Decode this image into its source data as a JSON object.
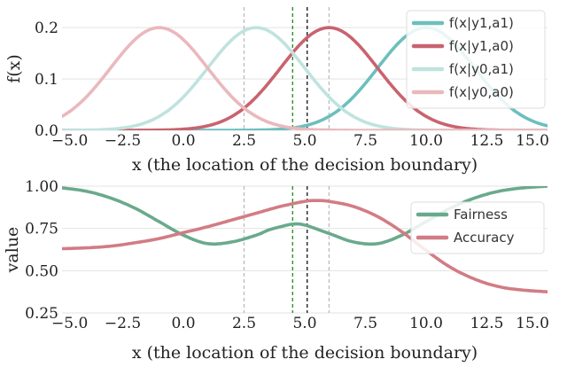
{
  "chart_data": [
    {
      "type": "line",
      "xlabel": "x (the location of the decision boundary)",
      "ylabel": "f(x)",
      "xlim": [
        -5,
        15
      ],
      "ylim": [
        0,
        0.24
      ],
      "xticks": [
        -5,
        -2.5,
        0,
        2.5,
        5,
        7.5,
        10,
        12.5,
        15
      ],
      "xtick_labels": [
        "−5.0",
        "−2.5",
        "0.0",
        "2.5",
        "5.0",
        "7.5",
        "10.0",
        "12.5",
        "15.0"
      ],
      "yticks": [
        0,
        0.1,
        0.2
      ],
      "ytick_labels": [
        "0.0",
        "0.1",
        "0.2"
      ],
      "grid": true,
      "legend": "top-right",
      "series": [
        {
          "name": "f(x|y1,a1)",
          "kind": "gaussian",
          "mean": 10,
          "std": 2,
          "peak": 0.2,
          "color": "#6cbfbd"
        },
        {
          "name": "f(x|y1,a0)",
          "kind": "gaussian",
          "mean": 6,
          "std": 2,
          "peak": 0.2,
          "color": "#c9636f"
        },
        {
          "name": "f(x|y0,a1)",
          "kind": "gaussian",
          "mean": 3,
          "std": 2,
          "peak": 0.2,
          "color": "#bfe3df"
        },
        {
          "name": "f(x|y0,a0)",
          "kind": "gaussian",
          "mean": -1,
          "std": 2,
          "peak": 0.2,
          "color": "#eab8bd"
        }
      ],
      "vlines": [
        {
          "x": 2.5,
          "color": "#bbbbbb",
          "style": "dashed"
        },
        {
          "x": 4.5,
          "color": "#1f8a1f",
          "style": "dashed"
        },
        {
          "x": 5.1,
          "color": "#111111",
          "style": "dashed"
        },
        {
          "x": 6.0,
          "color": "#bbbbbb",
          "style": "dashed"
        }
      ]
    },
    {
      "type": "line",
      "xlabel": "x (the location of the decision boundary)",
      "ylabel": "value",
      "xlim": [
        -5,
        15
      ],
      "ylim": [
        0.25,
        1.0
      ],
      "xticks": [
        -5,
        -2.5,
        0,
        2.5,
        5,
        7.5,
        10,
        12.5,
        15
      ],
      "xtick_labels": [
        "−5.0",
        "−2.5",
        "0.0",
        "2.5",
        "5.0",
        "7.5",
        "10.0",
        "12.5",
        "15.0"
      ],
      "yticks": [
        0.25,
        0.5,
        0.75,
        1.0
      ],
      "ytick_labels": [
        "0.25",
        "0.50",
        "0.75",
        "1.00"
      ],
      "grid": true,
      "legend": "top-right",
      "series": [
        {
          "name": "Fairness",
          "color": "#6aaa8c",
          "x": [
            -5,
            -4,
            -3,
            -2,
            -1,
            0,
            1,
            2,
            3,
            3.5,
            4,
            4.5,
            5,
            6,
            7,
            8,
            9,
            10,
            11,
            12,
            13,
            14,
            15
          ],
          "y": [
            0.99,
            0.97,
            0.93,
            0.87,
            0.79,
            0.71,
            0.66,
            0.67,
            0.71,
            0.74,
            0.76,
            0.775,
            0.77,
            0.72,
            0.67,
            0.66,
            0.71,
            0.79,
            0.87,
            0.93,
            0.97,
            0.99,
            1.0
          ]
        },
        {
          "name": "Accuracy",
          "color": "#d27c84",
          "x": [
            -5,
            -4,
            -3,
            -2,
            -1,
            0,
            1,
            2,
            3,
            4,
            5,
            5.5,
            6,
            7,
            8,
            9,
            10,
            11,
            12,
            13,
            14,
            15
          ],
          "y": [
            0.63,
            0.635,
            0.645,
            0.665,
            0.69,
            0.725,
            0.76,
            0.8,
            0.84,
            0.88,
            0.91,
            0.915,
            0.91,
            0.88,
            0.82,
            0.73,
            0.62,
            0.52,
            0.45,
            0.405,
            0.385,
            0.375
          ]
        }
      ],
      "vlines": [
        {
          "x": 2.5,
          "color": "#bbbbbb",
          "style": "dashed"
        },
        {
          "x": 4.5,
          "color": "#1f8a1f",
          "style": "dashed"
        },
        {
          "x": 5.1,
          "color": "#111111",
          "style": "dashed"
        },
        {
          "x": 6.0,
          "color": "#bbbbbb",
          "style": "dashed"
        }
      ]
    }
  ]
}
